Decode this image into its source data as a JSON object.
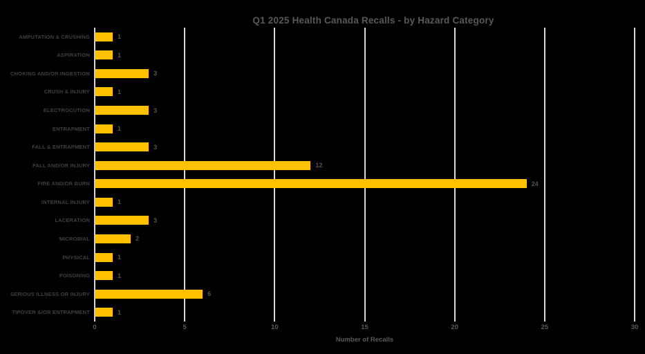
{
  "chart_data": {
    "type": "bar",
    "orientation": "horizontal",
    "title": "Q1 2025 Health Canada Recalls - by Hazard Category",
    "xlabel": "Number of Recalls",
    "ylabel": "",
    "categories": [
      "AMPUTATION & CRUSHING",
      "ASPIRATION",
      "CHOKING AND/OR INGESTION",
      "CRUSH & INJURY",
      "ELECTROCUTION",
      "ENTRAPMENT",
      "FALL & ENTRAPMENT",
      "FALL AND/OR INJURY",
      "FIRE AND/OR BURN",
      "INTERNAL INJURY",
      "LACERATION",
      "MICROBIAL",
      "PHYSICAL",
      "POISONING",
      "SERIOUS ILLNESS OR INJURY",
      "TIPOVER &/OR ENTRAPMENT"
    ],
    "values": [
      1,
      1,
      3,
      1,
      3,
      1,
      3,
      12,
      24,
      1,
      3,
      2,
      1,
      1,
      6,
      1
    ],
    "data_labels": [
      1,
      1,
      3,
      1,
      3,
      1,
      3,
      12,
      24,
      1,
      3,
      2,
      1,
      1,
      6,
      1
    ],
    "xlim": [
      0,
      30
    ],
    "x_ticks": [
      0,
      5,
      10,
      15,
      20,
      25,
      30
    ],
    "grid": true,
    "legend": false,
    "colors": {
      "background": "#000000",
      "bar": "#FFC000",
      "gridline": "#D9D9D9",
      "title_text": "#595959",
      "category_text": "#3F3F3F",
      "value_text": "#545454",
      "tick_text": "#595959"
    }
  }
}
